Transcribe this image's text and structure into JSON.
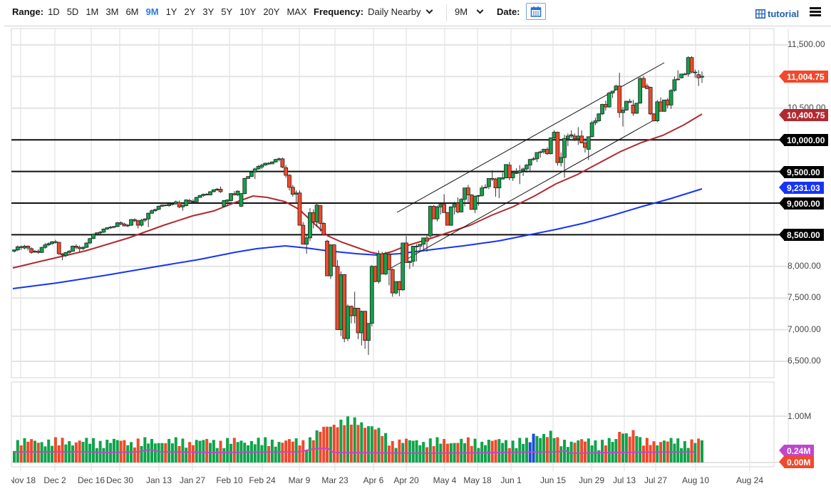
{
  "toolbar": {
    "range_label": "Range:",
    "range_options": [
      "1D",
      "5D",
      "1M",
      "3M",
      "6M",
      "9M",
      "1Y",
      "2Y",
      "3Y",
      "5Y",
      "10Y",
      "20Y",
      "MAX"
    ],
    "range_active": "9M",
    "frequency_label": "Frequency:",
    "frequency_value": "Daily Nearby",
    "period_value": "9M",
    "date_label": "Date:",
    "calendar_icon": "calendar-icon",
    "tutorial_label": "tutorial",
    "tutorial_icon": "grid-icon",
    "menu_icon": "hamburger-menu-icon"
  },
  "price_axis": {
    "ticks": [
      "11,500.00",
      "10,500.00",
      "8,000.00",
      "7,500.00",
      "7,000.00",
      "6,500.00"
    ],
    "tags": [
      {
        "label": "11,004.75",
        "value": 11004.75,
        "color": "#f0492b",
        "kind": "last-price"
      },
      {
        "label": "10,400.75",
        "value": 10400.75,
        "color": "#b02a30",
        "kind": "ma-50"
      },
      {
        "label": "10,000.00",
        "value": 10000,
        "color": "#000000",
        "kind": "horizontal-line"
      },
      {
        "label": "9,500.00",
        "value": 9500,
        "color": "#000000",
        "kind": "horizontal-line"
      },
      {
        "label": "9,231.03",
        "value": 9231.03,
        "color": "#1634f5",
        "kind": "ma-200"
      },
      {
        "label": "9,000.00",
        "value": 9000,
        "color": "#000000",
        "kind": "horizontal-line"
      },
      {
        "label": "8,500.00",
        "value": 8500,
        "color": "#000000",
        "kind": "horizontal-line"
      }
    ]
  },
  "volume_axis": {
    "ticks": [
      "1.00M"
    ],
    "tags": [
      {
        "label": "0.24M",
        "color": "#c046d0",
        "kind": "volume-ma"
      },
      {
        "label": "0.00M",
        "color": "#f0492b",
        "kind": "volume"
      }
    ]
  },
  "x_axis": {
    "labels": [
      "Nov 18",
      "Dec 2",
      "Dec 16",
      "Dec 30",
      "Jan 13",
      "Jan 27",
      "Feb 10",
      "Feb 24",
      "Mar 9",
      "Mar 23",
      "Apr 6",
      "Apr 20",
      "May 4",
      "May 18",
      "Jun 1",
      "Jun 15",
      "Jun 29",
      "Jul 13",
      "Jul 27",
      "Aug 10",
      "Aug 24"
    ]
  },
  "chart_data": {
    "type": "candlestick",
    "title": "",
    "xlabel": "",
    "ylabel": "",
    "ylim": [
      6400,
      11700
    ],
    "grid": true,
    "x_ticks": [
      "Nov 18",
      "Dec 2",
      "Dec 16",
      "Dec 30",
      "Jan 13",
      "Jan 27",
      "Feb 10",
      "Feb 24",
      "Mar 9",
      "Mar 23",
      "Apr 6",
      "Apr 20",
      "May 4",
      "May 18",
      "Jun 1",
      "Jun 15",
      "Jun 29",
      "Jul 13",
      "Jul 27",
      "Aug 10",
      "Aug 24"
    ],
    "y_ticks": [
      6500,
      7000,
      7500,
      8000,
      8500,
      9000,
      9500,
      10000,
      10500,
      11000,
      11500
    ],
    "horizontal_lines": [
      10000,
      9500,
      9000,
      8500
    ],
    "last_price": 11004.75,
    "moving_averages": [
      {
        "name": "MA 50",
        "color": "#b02a30",
        "last": 10400.75
      },
      {
        "name": "MA 200",
        "color": "#1634f5",
        "last": 9231.03
      }
    ],
    "channel": {
      "upper": [
        [
          8820,
          "Apr 20"
        ],
        [
          11250,
          "Jul 27"
        ]
      ],
      "lower": [
        [
          7950,
          "Apr 6"
        ],
        [
          10380,
          "Jul 27"
        ]
      ]
    },
    "ohlc": [
      [
        8240,
        8270,
        8220,
        8260
      ],
      [
        8260,
        8330,
        8240,
        8310
      ],
      [
        8310,
        8330,
        8260,
        8300
      ],
      [
        8290,
        8340,
        8270,
        8320
      ],
      [
        8320,
        8330,
        8250,
        8290
      ],
      [
        8280,
        8300,
        8200,
        8220
      ],
      [
        8230,
        8260,
        8210,
        8240
      ],
      [
        8240,
        8270,
        8200,
        8220
      ],
      [
        8220,
        8310,
        8210,
        8300
      ],
      [
        8300,
        8370,
        8280,
        8340
      ],
      [
        8340,
        8380,
        8320,
        8360
      ],
      [
        8360,
        8400,
        8340,
        8390
      ],
      [
        8390,
        8420,
        8360,
        8380
      ],
      [
        8380,
        8390,
        8180,
        8200
      ],
      [
        8200,
        8210,
        8100,
        8180
      ],
      [
        8170,
        8230,
        8150,
        8220
      ],
      [
        8220,
        8260,
        8200,
        8240
      ],
      [
        8240,
        8330,
        8230,
        8320
      ],
      [
        8320,
        8350,
        8270,
        8300
      ],
      [
        8300,
        8330,
        8230,
        8280
      ],
      [
        8280,
        8320,
        8260,
        8300
      ],
      [
        8300,
        8380,
        8290,
        8370
      ],
      [
        8370,
        8450,
        8350,
        8440
      ],
      [
        8440,
        8520,
        8430,
        8510
      ],
      [
        8510,
        8540,
        8490,
        8530
      ],
      [
        8530,
        8560,
        8510,
        8540
      ],
      [
        8540,
        8600,
        8530,
        8590
      ],
      [
        8590,
        8620,
        8580,
        8610
      ],
      [
        8610,
        8640,
        8590,
        8620
      ],
      [
        8620,
        8640,
        8600,
        8630
      ],
      [
        8630,
        8700,
        8620,
        8690
      ],
      [
        8690,
        8710,
        8650,
        8670
      ],
      [
        8670,
        8690,
        8630,
        8640
      ],
      [
        8640,
        8670,
        8620,
        8650
      ],
      [
        8650,
        8750,
        8640,
        8740
      ],
      [
        8740,
        8760,
        8700,
        8720
      ],
      [
        8720,
        8740,
        8600,
        8650
      ],
      [
        8650,
        8750,
        8630,
        8730
      ],
      [
        8730,
        8760,
        8700,
        8750
      ],
      [
        8750,
        8850,
        8620,
        8840
      ],
      [
        8840,
        8900,
        8830,
        8880
      ],
      [
        8880,
        8910,
        8860,
        8900
      ],
      [
        8900,
        8960,
        8890,
        8950
      ],
      [
        8950,
        8980,
        8940,
        8970
      ],
      [
        8970,
        8980,
        8950,
        8960
      ],
      [
        8960,
        8990,
        8940,
        8980
      ],
      [
        8980,
        9010,
        8960,
        8990
      ],
      [
        8990,
        9040,
        8970,
        9020
      ],
      [
        9010,
        9040,
        8920,
        8940
      ],
      [
        8940,
        8960,
        8880,
        8970
      ],
      [
        8960,
        9060,
        8950,
        9050
      ],
      [
        9040,
        9070,
        9000,
        9030
      ],
      [
        9030,
        9060,
        9010,
        9020
      ],
      [
        9020,
        9100,
        9000,
        9090
      ],
      [
        9090,
        9130,
        9080,
        9120
      ],
      [
        9120,
        9150,
        9100,
        9140
      ],
      [
        9140,
        9160,
        9120,
        9130
      ],
      [
        9130,
        9190,
        9120,
        9180
      ],
      [
        9180,
        9220,
        9170,
        9210
      ],
      [
        9210,
        9240,
        9190,
        9220
      ],
      [
        9220,
        9260,
        9160,
        9180
      ],
      [
        8950,
        9050,
        8940,
        9040
      ],
      [
        9030,
        9060,
        8950,
        9050
      ],
      [
        9040,
        9160,
        9020,
        9150
      ],
      [
        9150,
        9190,
        9120,
        9130
      ],
      [
        9130,
        9200,
        9110,
        9190
      ],
      [
        8950,
        9160,
        8940,
        9150
      ],
      [
        9150,
        9400,
        9140,
        9390
      ],
      [
        9390,
        9430,
        9380,
        9420
      ],
      [
        9420,
        9500,
        9410,
        9490
      ],
      [
        9490,
        9560,
        9380,
        9540
      ],
      [
        9540,
        9600,
        9530,
        9580
      ],
      [
        9570,
        9620,
        9540,
        9600
      ],
      [
        9600,
        9640,
        9590,
        9630
      ],
      [
        9630,
        9650,
        9600,
        9620
      ],
      [
        9620,
        9660,
        9620,
        9650
      ],
      [
        9650,
        9700,
        9640,
        9690
      ],
      [
        9690,
        9720,
        9660,
        9700
      ],
      [
        9700,
        9720,
        9550,
        9570
      ],
      [
        9560,
        9600,
        9400,
        9440
      ],
      [
        9440,
        9460,
        9200,
        9250
      ],
      [
        9250,
        9290,
        9100,
        9140
      ],
      [
        9140,
        9200,
        9000,
        9160
      ],
      [
        9160,
        9200,
        8950,
        8650
      ],
      [
        8650,
        8700,
        8400,
        8350
      ],
      [
        8350,
        8500,
        8200,
        8450
      ],
      [
        8450,
        8920,
        8400,
        8850
      ],
      [
        8850,
        8900,
        8600,
        8700
      ],
      [
        8700,
        9010,
        8620,
        8970
      ],
      [
        8960,
        8970,
        8550,
        8680
      ],
      [
        8680,
        8700,
        8550,
        8500
      ],
      [
        8400,
        8420,
        8000,
        7850
      ],
      [
        7850,
        8350,
        7800,
        8340
      ],
      [
        8340,
        8350,
        8100,
        8000
      ],
      [
        8000,
        8100,
        7400,
        7000
      ],
      [
        7000,
        7920,
        6900,
        7870
      ],
      [
        7870,
        7880,
        6800,
        6860
      ],
      [
        6860,
        7400,
        6820,
        7370
      ],
      [
        7370,
        7380,
        7100,
        7220
      ],
      [
        7220,
        7600,
        7100,
        7340
      ],
      [
        7340,
        7300,
        6850,
        6950
      ],
      [
        6950,
        7300,
        6750,
        7290
      ],
      [
        7290,
        7300,
        6700,
        6830
      ],
      [
        6830,
        7000,
        6600,
        7100
      ],
      [
        7100,
        8020,
        7050,
        8000
      ],
      [
        8000,
        8010,
        7750,
        7760
      ],
      [
        7760,
        8250,
        7730,
        8200
      ],
      [
        8200,
        8230,
        7930,
        7880
      ],
      [
        7880,
        8230,
        7860,
        8200
      ],
      [
        8190,
        8230,
        7700,
        7950
      ],
      [
        7950,
        7970,
        7520,
        7580
      ],
      [
        7580,
        7760,
        7560,
        7760
      ],
      [
        7760,
        7770,
        7530,
        7630
      ],
      [
        7630,
        8370,
        7610,
        8370
      ],
      [
        8370,
        8480,
        8120,
        8060
      ],
      [
        8060,
        8090,
        7960,
        8080
      ],
      [
        8080,
        8320,
        8000,
        8320
      ],
      [
        8320,
        8350,
        8080,
        8320
      ],
      [
        8320,
        8350,
        8240,
        8350
      ],
      [
        8350,
        8360,
        8240,
        8450
      ],
      [
        8450,
        8500,
        8230,
        8400
      ],
      [
        8480,
        8960,
        8450,
        8950
      ],
      [
        8950,
        8970,
        8760,
        8750
      ],
      [
        8750,
        8960,
        8710,
        8940
      ],
      [
        8940,
        8990,
        8820,
        8980
      ],
      [
        8980,
        9140,
        8860,
        8850
      ],
      [
        8850,
        8860,
        8660,
        8650
      ],
      [
        8650,
        8950,
        8640,
        8940
      ],
      [
        8940,
        9020,
        8820,
        8990
      ],
      [
        9000,
        9090,
        8840,
        8860
      ],
      [
        8860,
        9080,
        8850,
        9060
      ],
      [
        9060,
        9240,
        8950,
        9240
      ],
      [
        9240,
        9290,
        9000,
        9130
      ],
      [
        9130,
        9140,
        8900,
        8900
      ],
      [
        8900,
        9120,
        8840,
        9110
      ],
      [
        9110,
        9130,
        8960,
        9120
      ],
      [
        9120,
        9280,
        9100,
        9240
      ],
      [
        9240,
        9300,
        9240,
        9250
      ],
      [
        9260,
        9390,
        9220,
        9390
      ],
      [
        9390,
        9520,
        9350,
        9380
      ],
      [
        9380,
        9400,
        9100,
        9240
      ],
      [
        9240,
        9410,
        9080,
        9400
      ],
      [
        9380,
        9480,
        9380,
        9400
      ],
      [
        9400,
        9610,
        9390,
        9610
      ],
      [
        9600,
        9650,
        9360,
        9400
      ],
      [
        9400,
        9490,
        9350,
        9480
      ],
      [
        9480,
        9550,
        9460,
        9480
      ],
      [
        9480,
        9600,
        9300,
        9510
      ],
      [
        9510,
        9560,
        9430,
        9540
      ],
      [
        9540,
        9620,
        9480,
        9600
      ],
      [
        9600,
        9700,
        9510,
        9690
      ],
      [
        9690,
        9730,
        9670,
        9700
      ],
      [
        9700,
        9770,
        9650,
        9800
      ],
      [
        9800,
        9830,
        9720,
        9810
      ],
      [
        9810,
        9860,
        9780,
        9850
      ],
      [
        9850,
        9880,
        9760,
        9780
      ],
      [
        9780,
        10040,
        9770,
        10030
      ],
      [
        10030,
        10150,
        10000,
        10120
      ],
      [
        10120,
        10130,
        9590,
        9640
      ],
      [
        9640,
        9800,
        9580,
        9720
      ],
      [
        9720,
        10080,
        9400,
        10020
      ],
      [
        10020,
        10100,
        9900,
        10060
      ],
      [
        10060,
        10150,
        10030,
        10080
      ],
      [
        10060,
        10100,
        9980,
        10020
      ],
      [
        10020,
        10200,
        9920,
        10060
      ],
      [
        10060,
        10150,
        9990,
        9950
      ],
      [
        9950,
        10030,
        9800,
        9880
      ],
      [
        9850,
        10020,
        9680,
        10050
      ],
      [
        10050,
        10300,
        10040,
        10270
      ],
      [
        10270,
        10350,
        10230,
        10300
      ],
      [
        10300,
        10420,
        10280,
        10410
      ],
      [
        10410,
        10570,
        10390,
        10560
      ],
      [
        10560,
        10620,
        10460,
        10520
      ],
      [
        10520,
        10760,
        10510,
        10740
      ],
      [
        10740,
        10770,
        10660,
        10770
      ],
      [
        10790,
        10870,
        10780,
        10850
      ],
      [
        10850,
        11060,
        10350,
        10430
      ],
      [
        10430,
        10520,
        10210,
        10470
      ],
      [
        10470,
        10590,
        10460,
        10610
      ],
      [
        10610,
        10650,
        10580,
        10590
      ],
      [
        10550,
        10630,
        10380,
        10420
      ],
      [
        10420,
        10580,
        10410,
        10580
      ],
      [
        10580,
        10990,
        10570,
        10970
      ],
      [
        10970,
        11010,
        10870,
        10830
      ],
      [
        10850,
        10890,
        10800,
        10810
      ],
      [
        10830,
        10840,
        10390,
        10410
      ],
      [
        10410,
        10420,
        10290,
        10300
      ],
      [
        10300,
        10630,
        10280,
        10600
      ],
      [
        10600,
        10670,
        10450,
        10450
      ],
      [
        10450,
        10620,
        10440,
        10630
      ],
      [
        10630,
        10660,
        10500,
        10550
      ],
      [
        10550,
        10800,
        10490,
        10780
      ],
      [
        10780,
        11000,
        10760,
        10950
      ],
      [
        10950,
        11100,
        10940,
        10960
      ],
      [
        10980,
        11040,
        10970,
        11040
      ],
      [
        11040,
        11060,
        11020,
        11040
      ],
      [
        11040,
        11320,
        11000,
        11300
      ],
      [
        11300,
        11320,
        11050,
        11070
      ],
      [
        11070,
        11110,
        10980,
        11070
      ],
      [
        11030,
        11100,
        10850,
        10980
      ],
      [
        10990,
        11080,
        10900,
        11004.75
      ]
    ],
    "volume": {
      "axis_max_label": "1.00M",
      "last": "0.00M",
      "ma_last": "0.24M"
    }
  }
}
